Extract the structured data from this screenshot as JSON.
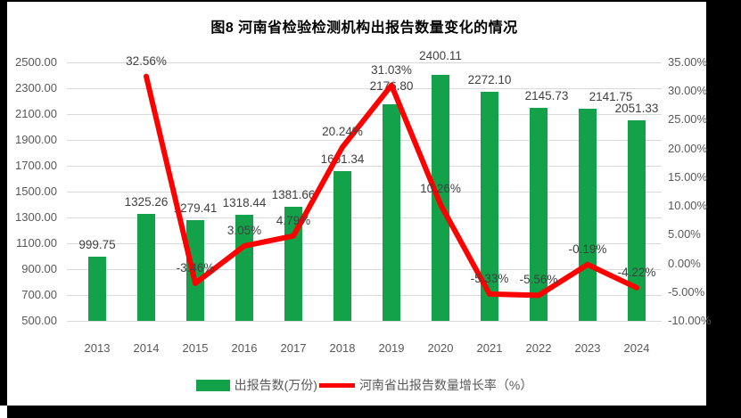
{
  "colors": {
    "backdrop": "#000000",
    "sheet": "#ffffff",
    "bar": "#13a24a",
    "line": "#fe0000",
    "grid": "#d9d9d9",
    "axis_text": "#595959",
    "data_label_text": "#404040",
    "title_text": "#000000"
  },
  "chart_data": {
    "type": "combo-bar-line",
    "title": "图8  河南省检验检测机构出报告数量变化的情况",
    "categories": [
      "2013",
      "2014",
      "2015",
      "2016",
      "2017",
      "2018",
      "2019",
      "2020",
      "2021",
      "2022",
      "2023",
      "2024"
    ],
    "series": [
      {
        "name": "出报告数(万份)",
        "type": "bar",
        "axis": "left",
        "color": "#13a24a",
        "values": [
          999.75,
          1325.26,
          1279.41,
          1318.44,
          1381.66,
          1661.34,
          2176.8,
          2400.11,
          2272.1,
          2145.73,
          2141.75,
          2051.33
        ],
        "labels": [
          "999.75",
          "1325.26",
          "1279.41",
          "1318.44",
          "1381.66",
          "1661.34",
          "2176.80",
          "2400.11",
          "2272.10",
          "2145.73",
          "2141.75",
          "2051.33"
        ]
      },
      {
        "name": "河南省出报告数量增长率（%）",
        "type": "line",
        "axis": "right",
        "color": "#fe0000",
        "values": [
          null,
          32.56,
          -3.46,
          3.05,
          4.79,
          20.24,
          31.03,
          10.26,
          -5.33,
          -5.56,
          -0.19,
          -4.22
        ],
        "labels": [
          null,
          "32.56%",
          "-3.46%",
          "3.05%",
          "4.79%",
          "20.24%",
          "31.03%",
          "10.26%",
          "-5.33%",
          "-5.56%",
          "-0.19%",
          "-4.22%"
        ]
      }
    ],
    "left_axis": {
      "min": 500,
      "max": 2500,
      "step": 200,
      "tick_labels": [
        "500.00",
        "700.00",
        "900.00",
        "1100.00",
        "1300.00",
        "1500.00",
        "1700.00",
        "1900.00",
        "2100.00",
        "2300.00",
        "2500.00"
      ]
    },
    "right_axis": {
      "min": -10,
      "max": 35,
      "step": 5,
      "tick_labels": [
        "-10.00%",
        "-5.00%",
        "0.00%",
        "5.00%",
        "10.00%",
        "15.00%",
        "20.00%",
        "25.00%",
        "30.00%",
        "35.00%"
      ]
    },
    "gridlines": true,
    "legend_position": "bottom",
    "label_offsets": {
      "bar_dx": [
        0,
        0,
        0,
        0,
        0,
        0,
        0,
        0,
        0,
        9,
        26,
        0
      ],
      "bar_dy": [
        0,
        0,
        0,
        0,
        0,
        0,
        -7,
        -8,
        0,
        0,
        0,
        0
      ]
    }
  }
}
